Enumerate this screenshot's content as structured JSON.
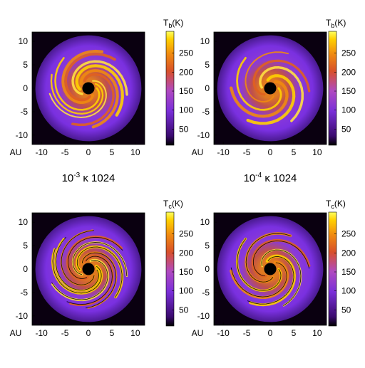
{
  "panels": [
    {
      "id": "top-left",
      "colorbar_label": "T",
      "colorbar_sub": "b",
      "colorbar_unit": "(K)",
      "colorbar_ticks": [
        "250",
        "200",
        "150",
        "100",
        "50"
      ],
      "x_ticks": [
        "-10",
        "-5",
        "0",
        "5",
        "10"
      ],
      "y_ticks": [
        "10",
        "5",
        "0",
        "-5",
        "-10"
      ],
      "axis_unit": "AU",
      "caption_base": "10",
      "caption_exp": "-3",
      "caption_rest": " κ 1024"
    },
    {
      "id": "top-right",
      "colorbar_label": "T",
      "colorbar_sub": "b",
      "colorbar_unit": "(K)",
      "colorbar_ticks": [
        "250",
        "200",
        "150",
        "100",
        "50"
      ],
      "x_ticks": [
        "-10",
        "-5",
        "0",
        "5",
        "10"
      ],
      "y_ticks": [
        "10",
        "5",
        "0",
        "-5",
        "-10"
      ],
      "axis_unit": "AU",
      "caption_base": "10",
      "caption_exp": "-4",
      "caption_rest": " κ 1024"
    },
    {
      "id": "bottom-left",
      "colorbar_label": "T",
      "colorbar_sub": "c",
      "colorbar_unit": "(K)",
      "colorbar_ticks": [
        "250",
        "200",
        "150",
        "100",
        "50"
      ],
      "x_ticks": [
        "-10",
        "-5",
        "0",
        "5",
        "10"
      ],
      "y_ticks": [
        "10",
        "5",
        "0",
        "-5",
        "-10"
      ],
      "axis_unit": "AU"
    },
    {
      "id": "bottom-right",
      "colorbar_label": "T",
      "colorbar_sub": "c",
      "colorbar_unit": "(K)",
      "colorbar_ticks": [
        "250",
        "200",
        "150",
        "100",
        "50"
      ],
      "x_ticks": [
        "-10",
        "-5",
        "0",
        "5",
        "10"
      ],
      "y_ticks": [
        "10",
        "5",
        "0",
        "-5",
        "-10"
      ],
      "axis_unit": "AU"
    }
  ],
  "colormap": [
    "#000000",
    "#3a0a6e",
    "#7a2fd8",
    "#b04ac0",
    "#d8502a",
    "#f08a10",
    "#ffd000",
    "#ffff60"
  ]
}
